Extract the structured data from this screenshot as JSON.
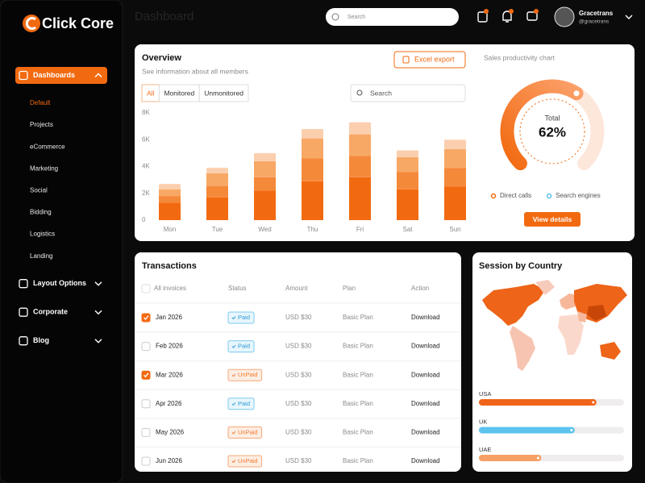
{
  "sidebar": {
    "logo": "Click Core",
    "menu": [
      {
        "label": "Dashboards",
        "expanded": true,
        "items": [
          "Default",
          "Projects",
          "eCommerce",
          "Marketing",
          "Social",
          "Bidding",
          "Logistics",
          "Landing"
        ],
        "active_item": 0
      },
      {
        "label": "Layout Options",
        "expanded": false
      },
      {
        "label": "Corporate",
        "expanded": false
      },
      {
        "label": "Blog",
        "expanded": false
      }
    ]
  },
  "header": {
    "title": "Dashboard",
    "search": "Search",
    "user_name": "Gracetrans",
    "user_handle": "@gracetrans"
  },
  "overview": {
    "title": "Overview",
    "subtitle": "See information about all members",
    "export_button": "Excel export",
    "tabs": [
      "All",
      "Monitored",
      "Unmonitored"
    ],
    "active_tab": 0,
    "search": "Search"
  },
  "transactions": {
    "title": "Transactions",
    "columns": [
      "All invoices",
      "Status",
      "Amount",
      "Plan",
      "Action"
    ],
    "rows": [
      {
        "checked": true,
        "invoice": "Jan 2026",
        "status": "Paid",
        "paid": true,
        "amount": "USD $30",
        "plan": "Basic Plan",
        "action": "Download"
      },
      {
        "checked": false,
        "invoice": "Feb 2026",
        "status": "Paid",
        "paid": true,
        "amount": "USD $30",
        "plan": "Basic Plan",
        "action": "Download"
      },
      {
        "checked": true,
        "invoice": "Mar 2026",
        "status": "UnPaid",
        "paid": false,
        "amount": "USD $30",
        "plan": "Basic Plan",
        "action": "Download"
      },
      {
        "checked": false,
        "invoice": "Apr 2026",
        "status": "Paid",
        "paid": true,
        "amount": "USD $30",
        "plan": "Basic Plan",
        "action": "Download"
      },
      {
        "checked": false,
        "invoice": "May 2026",
        "status": "UnPaid",
        "paid": false,
        "amount": "USD $30",
        "plan": "Basic Plan",
        "action": "Download"
      },
      {
        "checked": false,
        "invoice": "Jun 2026",
        "status": "UnPaid",
        "paid": false,
        "amount": "USD $30",
        "plan": "Basic Plan",
        "action": "Download"
      }
    ]
  },
  "chart_data": [
    {
      "type": "bar",
      "stacked": true,
      "categories": [
        "Mon",
        "Tue",
        "Wed",
        "Thu",
        "Fri",
        "Sat",
        "Sun"
      ],
      "series": [
        {
          "color": "#f26a10",
          "values": [
            1300,
            1700,
            2200,
            2900,
            3200,
            2300,
            2500
          ]
        },
        {
          "color": "#f5893a",
          "values": [
            500,
            850,
            1000,
            1700,
            1600,
            1300,
            1400
          ]
        },
        {
          "color": "#f8a865",
          "values": [
            500,
            950,
            1200,
            1500,
            1600,
            1100,
            1400
          ]
        },
        {
          "color": "#fbcfae",
          "values": [
            400,
            400,
            600,
            700,
            900,
            500,
            700
          ]
        }
      ],
      "ylim": [
        0,
        8000
      ],
      "yticks": [
        0,
        {
          "value": 2000,
          "label": "2K"
        },
        {
          "value": 4000,
          "label": "4K"
        },
        {
          "value": 6000,
          "label": "6K"
        },
        {
          "value": 8000,
          "label": "8K"
        }
      ],
      "grid": false
    },
    {
      "type": "gauge",
      "title": "Sales productivity chart",
      "center_label": "Total",
      "values": [
        62
      ],
      "value_labels": [
        "62%"
      ],
      "ylim": [
        0,
        100
      ],
      "color": "#f26a10",
      "legend": [
        {
          "name": "Direct calls",
          "color": "#f26a10"
        },
        {
          "name": "Search engines",
          "color": "#5bc0eb"
        }
      ],
      "button": "View details"
    },
    {
      "type": "progress",
      "title": "Session by Country",
      "categories": [
        "USA",
        "UK",
        "UAE"
      ],
      "values": [
        81,
        66,
        43
      ],
      "colors": [
        "#f0641a",
        "#5cc3ef",
        "#f7a066"
      ],
      "xlim": [
        0,
        100
      ]
    }
  ]
}
